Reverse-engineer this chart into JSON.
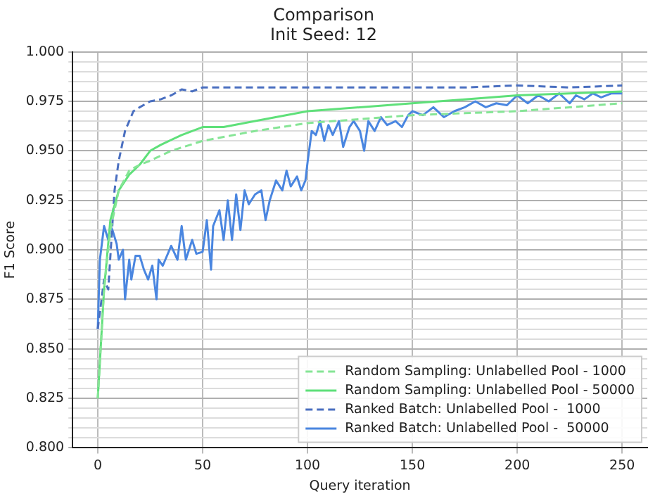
{
  "chart_data": {
    "type": "line",
    "title": "Comparison",
    "subtitle": "Init Seed: 12",
    "xlabel": "Query iteration",
    "ylabel": "F1 Score",
    "xlim": [
      -12,
      262
    ],
    "xticks": [
      0,
      50,
      100,
      150,
      200,
      250
    ],
    "ylim": [
      0.8,
      1.0
    ],
    "yticks": [
      {
        "value": 0.8,
        "label": "0.800"
      },
      {
        "value": 0.805,
        "label": null
      },
      {
        "value": 0.81,
        "label": null
      },
      {
        "value": 0.815,
        "label": null
      },
      {
        "value": 0.82,
        "label": null
      },
      {
        "value": 0.825,
        "label": "0.825"
      },
      {
        "value": 0.83,
        "label": null
      },
      {
        "value": 0.835,
        "label": null
      },
      {
        "value": 0.84,
        "label": null
      },
      {
        "value": 0.845,
        "label": null
      },
      {
        "value": 0.85,
        "label": "0.850"
      },
      {
        "value": 0.855,
        "label": null
      },
      {
        "value": 0.86,
        "label": null
      },
      {
        "value": 0.865,
        "label": null
      },
      {
        "value": 0.87,
        "label": null
      },
      {
        "value": 0.875,
        "label": "0.875"
      },
      {
        "value": 0.88,
        "label": null
      },
      {
        "value": 0.885,
        "label": null
      },
      {
        "value": 0.89,
        "label": null
      },
      {
        "value": 0.895,
        "label": null
      },
      {
        "value": 0.9,
        "label": "0.900"
      },
      {
        "value": 0.905,
        "label": null
      },
      {
        "value": 0.91,
        "label": null
      },
      {
        "value": 0.915,
        "label": null
      },
      {
        "value": 0.92,
        "label": null
      },
      {
        "value": 0.925,
        "label": "0.925"
      },
      {
        "value": 0.93,
        "label": null
      },
      {
        "value": 0.935,
        "label": null
      },
      {
        "value": 0.94,
        "label": null
      },
      {
        "value": 0.945,
        "label": null
      },
      {
        "value": 0.95,
        "label": "0.950"
      },
      {
        "value": 0.955,
        "label": null
      },
      {
        "value": 0.96,
        "label": null
      },
      {
        "value": 0.965,
        "label": null
      },
      {
        "value": 0.97,
        "label": null
      },
      {
        "value": 0.975,
        "label": "0.975"
      },
      {
        "value": 0.98,
        "label": null
      },
      {
        "value": 0.985,
        "label": null
      },
      {
        "value": 0.99,
        "label": null
      },
      {
        "value": 0.995,
        "label": null
      },
      {
        "value": 1.0,
        "label": "1.000"
      }
    ],
    "grid": true,
    "legend": "bottom right",
    "marker": "none",
    "series": [
      {
        "name": "Random Sampling: Unlabelled Pool - 1000",
        "color": "#86e596",
        "line_style": "dashed",
        "x": [
          0,
          3,
          6,
          10,
          15,
          20,
          25,
          35,
          50,
          75,
          100,
          125,
          150,
          175,
          200,
          225,
          250
        ],
        "values": [
          0.825,
          0.88,
          0.91,
          0.93,
          0.94,
          0.943,
          0.945,
          0.95,
          0.955,
          0.96,
          0.964,
          0.966,
          0.968,
          0.969,
          0.97,
          0.972,
          0.974
        ]
      },
      {
        "name": "Random Sampling: Unlabelled Pool - 50000",
        "color": "#5fe07a",
        "line_style": "solid",
        "x": [
          0,
          3,
          6,
          10,
          15,
          20,
          25,
          30,
          40,
          50,
          60,
          75,
          100,
          125,
          150,
          175,
          200,
          225,
          250
        ],
        "values": [
          0.825,
          0.88,
          0.915,
          0.93,
          0.938,
          0.943,
          0.95,
          0.953,
          0.958,
          0.962,
          0.962,
          0.965,
          0.97,
          0.972,
          0.974,
          0.976,
          0.978,
          0.979,
          0.98
        ]
      },
      {
        "name": "Ranked Batch: Unlabelled Pool -  1000",
        "color": "#4a6fc0",
        "line_style": "dashed",
        "x": [
          0,
          3,
          5,
          8,
          10,
          13,
          17,
          20,
          25,
          30,
          35,
          40,
          45,
          50,
          75,
          100,
          125,
          150,
          175,
          200,
          225,
          250
        ],
        "values": [
          0.86,
          0.885,
          0.88,
          0.93,
          0.945,
          0.96,
          0.97,
          0.972,
          0.975,
          0.976,
          0.978,
          0.981,
          0.98,
          0.982,
          0.982,
          0.982,
          0.982,
          0.982,
          0.982,
          0.983,
          0.982,
          0.983
        ]
      },
      {
        "name": "Ranked Batch: Unlabelled Pool -  50000",
        "color": "#4a86e0",
        "line_style": "solid",
        "x": [
          0,
          1,
          3,
          5,
          6,
          7,
          9,
          10,
          12,
          13,
          15,
          16,
          18,
          20,
          22,
          24,
          26,
          28,
          29,
          31,
          35,
          38,
          40,
          42,
          45,
          47,
          50,
          52,
          54,
          55,
          58,
          60,
          62,
          64,
          66,
          68,
          70,
          72,
          75,
          78,
          80,
          82,
          85,
          88,
          90,
          92,
          95,
          97,
          99,
          100,
          102,
          104,
          106,
          108,
          110,
          112,
          115,
          117,
          120,
          122,
          125,
          127,
          129,
          132,
          135,
          138,
          142,
          145,
          148,
          150,
          155,
          160,
          165,
          170,
          175,
          180,
          185,
          190,
          195,
          200,
          205,
          210,
          215,
          220,
          225,
          228,
          232,
          236,
          240,
          245,
          250
        ],
        "values": [
          0.86,
          0.895,
          0.912,
          0.905,
          0.912,
          0.91,
          0.903,
          0.895,
          0.9,
          0.875,
          0.895,
          0.885,
          0.897,
          0.897,
          0.89,
          0.885,
          0.892,
          0.875,
          0.895,
          0.892,
          0.902,
          0.895,
          0.912,
          0.895,
          0.905,
          0.898,
          0.899,
          0.915,
          0.89,
          0.912,
          0.92,
          0.905,
          0.925,
          0.905,
          0.928,
          0.91,
          0.93,
          0.923,
          0.928,
          0.93,
          0.915,
          0.925,
          0.935,
          0.93,
          0.94,
          0.932,
          0.937,
          0.93,
          0.935,
          0.944,
          0.96,
          0.958,
          0.965,
          0.955,
          0.963,
          0.958,
          0.965,
          0.952,
          0.962,
          0.965,
          0.96,
          0.95,
          0.965,
          0.96,
          0.967,
          0.963,
          0.965,
          0.962,
          0.968,
          0.97,
          0.968,
          0.972,
          0.967,
          0.97,
          0.972,
          0.975,
          0.972,
          0.974,
          0.973,
          0.978,
          0.974,
          0.978,
          0.975,
          0.979,
          0.974,
          0.978,
          0.976,
          0.979,
          0.977,
          0.979,
          0.979
        ]
      }
    ]
  }
}
